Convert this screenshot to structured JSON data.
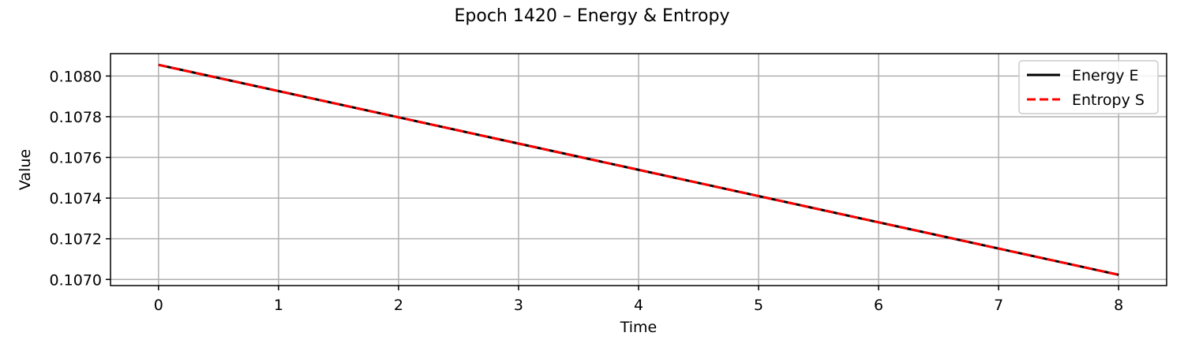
{
  "colors": {
    "background": "#ffffff",
    "grid": "#b0b0b0",
    "axis": "#000000",
    "legend_border": "#cccccc"
  },
  "chart_data": {
    "type": "line",
    "title": "Epoch 1420 – Energy & Entropy",
    "xlabel": "Time",
    "ylabel": "Value",
    "xlim": [
      -0.4,
      8.4
    ],
    "ylim": [
      0.10697,
      0.10811
    ],
    "xticks": [
      0,
      1,
      2,
      3,
      4,
      5,
      6,
      7,
      8
    ],
    "xtick_labels": [
      "0",
      "1",
      "2",
      "3",
      "4",
      "5",
      "6",
      "7",
      "8"
    ],
    "yticks": [
      0.107,
      0.1072,
      0.1074,
      0.1076,
      0.1078,
      0.108
    ],
    "ytick_labels": [
      "0.1070",
      "0.1072",
      "0.1074",
      "0.1076",
      "0.1078",
      "0.1080"
    ],
    "grid": true,
    "legend_position": "top-right",
    "x": [
      0,
      1,
      2,
      3,
      4,
      5,
      6,
      7,
      8
    ],
    "series": [
      {
        "name": "Energy E",
        "color": "#000000",
        "style": "solid",
        "values": [
          0.108055,
          0.107926,
          0.107797,
          0.107668,
          0.107539,
          0.10741,
          0.107281,
          0.107152,
          0.107023
        ]
      },
      {
        "name": "Entropy S",
        "color": "#ff0000",
        "style": "dashed",
        "values": [
          0.108055,
          0.107926,
          0.107797,
          0.107668,
          0.107539,
          0.10741,
          0.107281,
          0.107152,
          0.107023
        ]
      }
    ]
  }
}
